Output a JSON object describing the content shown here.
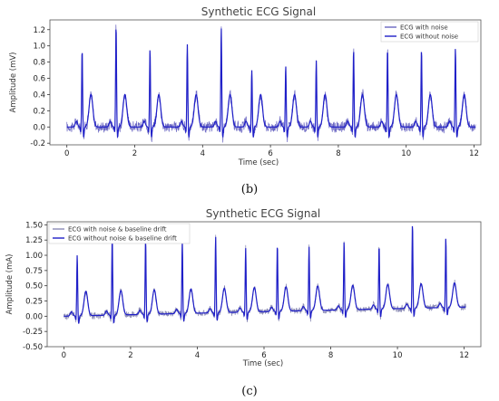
{
  "chart_data": [
    {
      "type": "line",
      "title": "Synthetic ECG Signal",
      "xlabel": "Time (sec)",
      "ylabel": "Amplitude (mV)",
      "xlim": [
        -0.5,
        12.2
      ],
      "ylim": [
        -0.22,
        1.32
      ],
      "xticks": [
        0,
        2,
        4,
        6,
        8,
        10,
        12
      ],
      "yticks": [
        -0.2,
        0.0,
        0.2,
        0.4,
        0.6,
        0.8,
        1.0,
        1.2
      ],
      "grid": false,
      "legend_position": "top-right",
      "beat_times": [
        0.45,
        1.45,
        2.45,
        3.55,
        4.55,
        5.45,
        6.45,
        7.35,
        8.45,
        9.45,
        10.45,
        11.45
      ],
      "r_peaks": [
        0.96,
        1.26,
        0.97,
        1.02,
        1.22,
        0.7,
        0.75,
        0.82,
        0.96,
        0.97,
        0.96,
        0.98
      ],
      "t_wave_peak": 0.4,
      "baseline_drift": 0.0,
      "noise_amplitude": 0.06,
      "series": [
        {
          "name": "ECG with noise",
          "color": "#6a66c2"
        },
        {
          "name": "ECG without noise",
          "color": "#1f1fc8"
        }
      ],
      "caption": "(b)"
    },
    {
      "type": "line",
      "title": "Synthetic ECG Signal",
      "xlabel": "Time (sec)",
      "ylabel": "Amplitude (mA)",
      "xlim": [
        -0.5,
        12.5
      ],
      "ylim": [
        -0.5,
        1.55
      ],
      "xticks": [
        0,
        2,
        4,
        6,
        8,
        10,
        12
      ],
      "yticks": [
        -0.5,
        -0.25,
        0.0,
        0.25,
        0.5,
        0.75,
        1.0,
        1.25,
        1.5
      ],
      "grid": false,
      "legend_position": "top-left",
      "beat_times": [
        0.4,
        1.45,
        2.45,
        3.55,
        4.55,
        5.45,
        6.4,
        7.35,
        8.4,
        9.45,
        10.45,
        11.45
      ],
      "r_peaks": [
        1.0,
        1.28,
        1.25,
        1.2,
        1.25,
        1.05,
        1.1,
        1.05,
        1.12,
        1.05,
        1.4,
        1.15
      ],
      "t_wave_peak": 0.4,
      "baseline_drift": 0.15,
      "noise_amplitude": 0.05,
      "series": [
        {
          "name": "ECG with noise & baseline drift",
          "color": "#8a8ab5"
        },
        {
          "name": "ECG without noise & baseline drift",
          "color": "#1f1fc8"
        }
      ],
      "caption": "(c)"
    }
  ]
}
